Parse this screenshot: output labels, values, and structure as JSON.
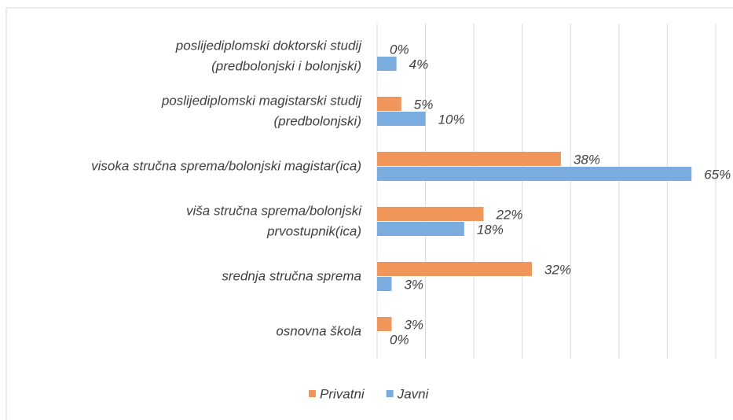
{
  "chart_data": {
    "type": "hbar",
    "categories": [
      [
        "poslijediplomski doktorski studij",
        "(predbolonjski i bolonjski)"
      ],
      [
        "poslijediplomski magistarski studij",
        "(predbolonjski)"
      ],
      [
        "visoka stručna sprema/bolonjski magistar(ica)"
      ],
      [
        "viša stručna sprema/bolonjski",
        "prvostupnik(ica)"
      ],
      [
        "srednja stručna sprema"
      ],
      [
        "osnovna škola"
      ]
    ],
    "series": [
      {
        "name": "Privatni",
        "color": "#f0965a",
        "values": [
          0,
          5,
          38,
          22,
          32,
          3
        ],
        "value_labels": [
          "0%",
          "5%",
          "38%",
          "22%",
          "32%",
          "3%"
        ]
      },
      {
        "name": "Javni",
        "color": "#7aace0",
        "values": [
          4,
          10,
          65,
          18,
          3,
          0
        ],
        "value_labels": [
          "4%",
          "10%",
          "65%",
          "18%",
          "3%",
          "0%"
        ]
      }
    ],
    "xlim": [
      0,
      70
    ],
    "xticks": [
      0,
      10,
      20,
      30,
      40,
      50,
      60,
      70
    ],
    "grid": true,
    "legend": "bottom"
  }
}
